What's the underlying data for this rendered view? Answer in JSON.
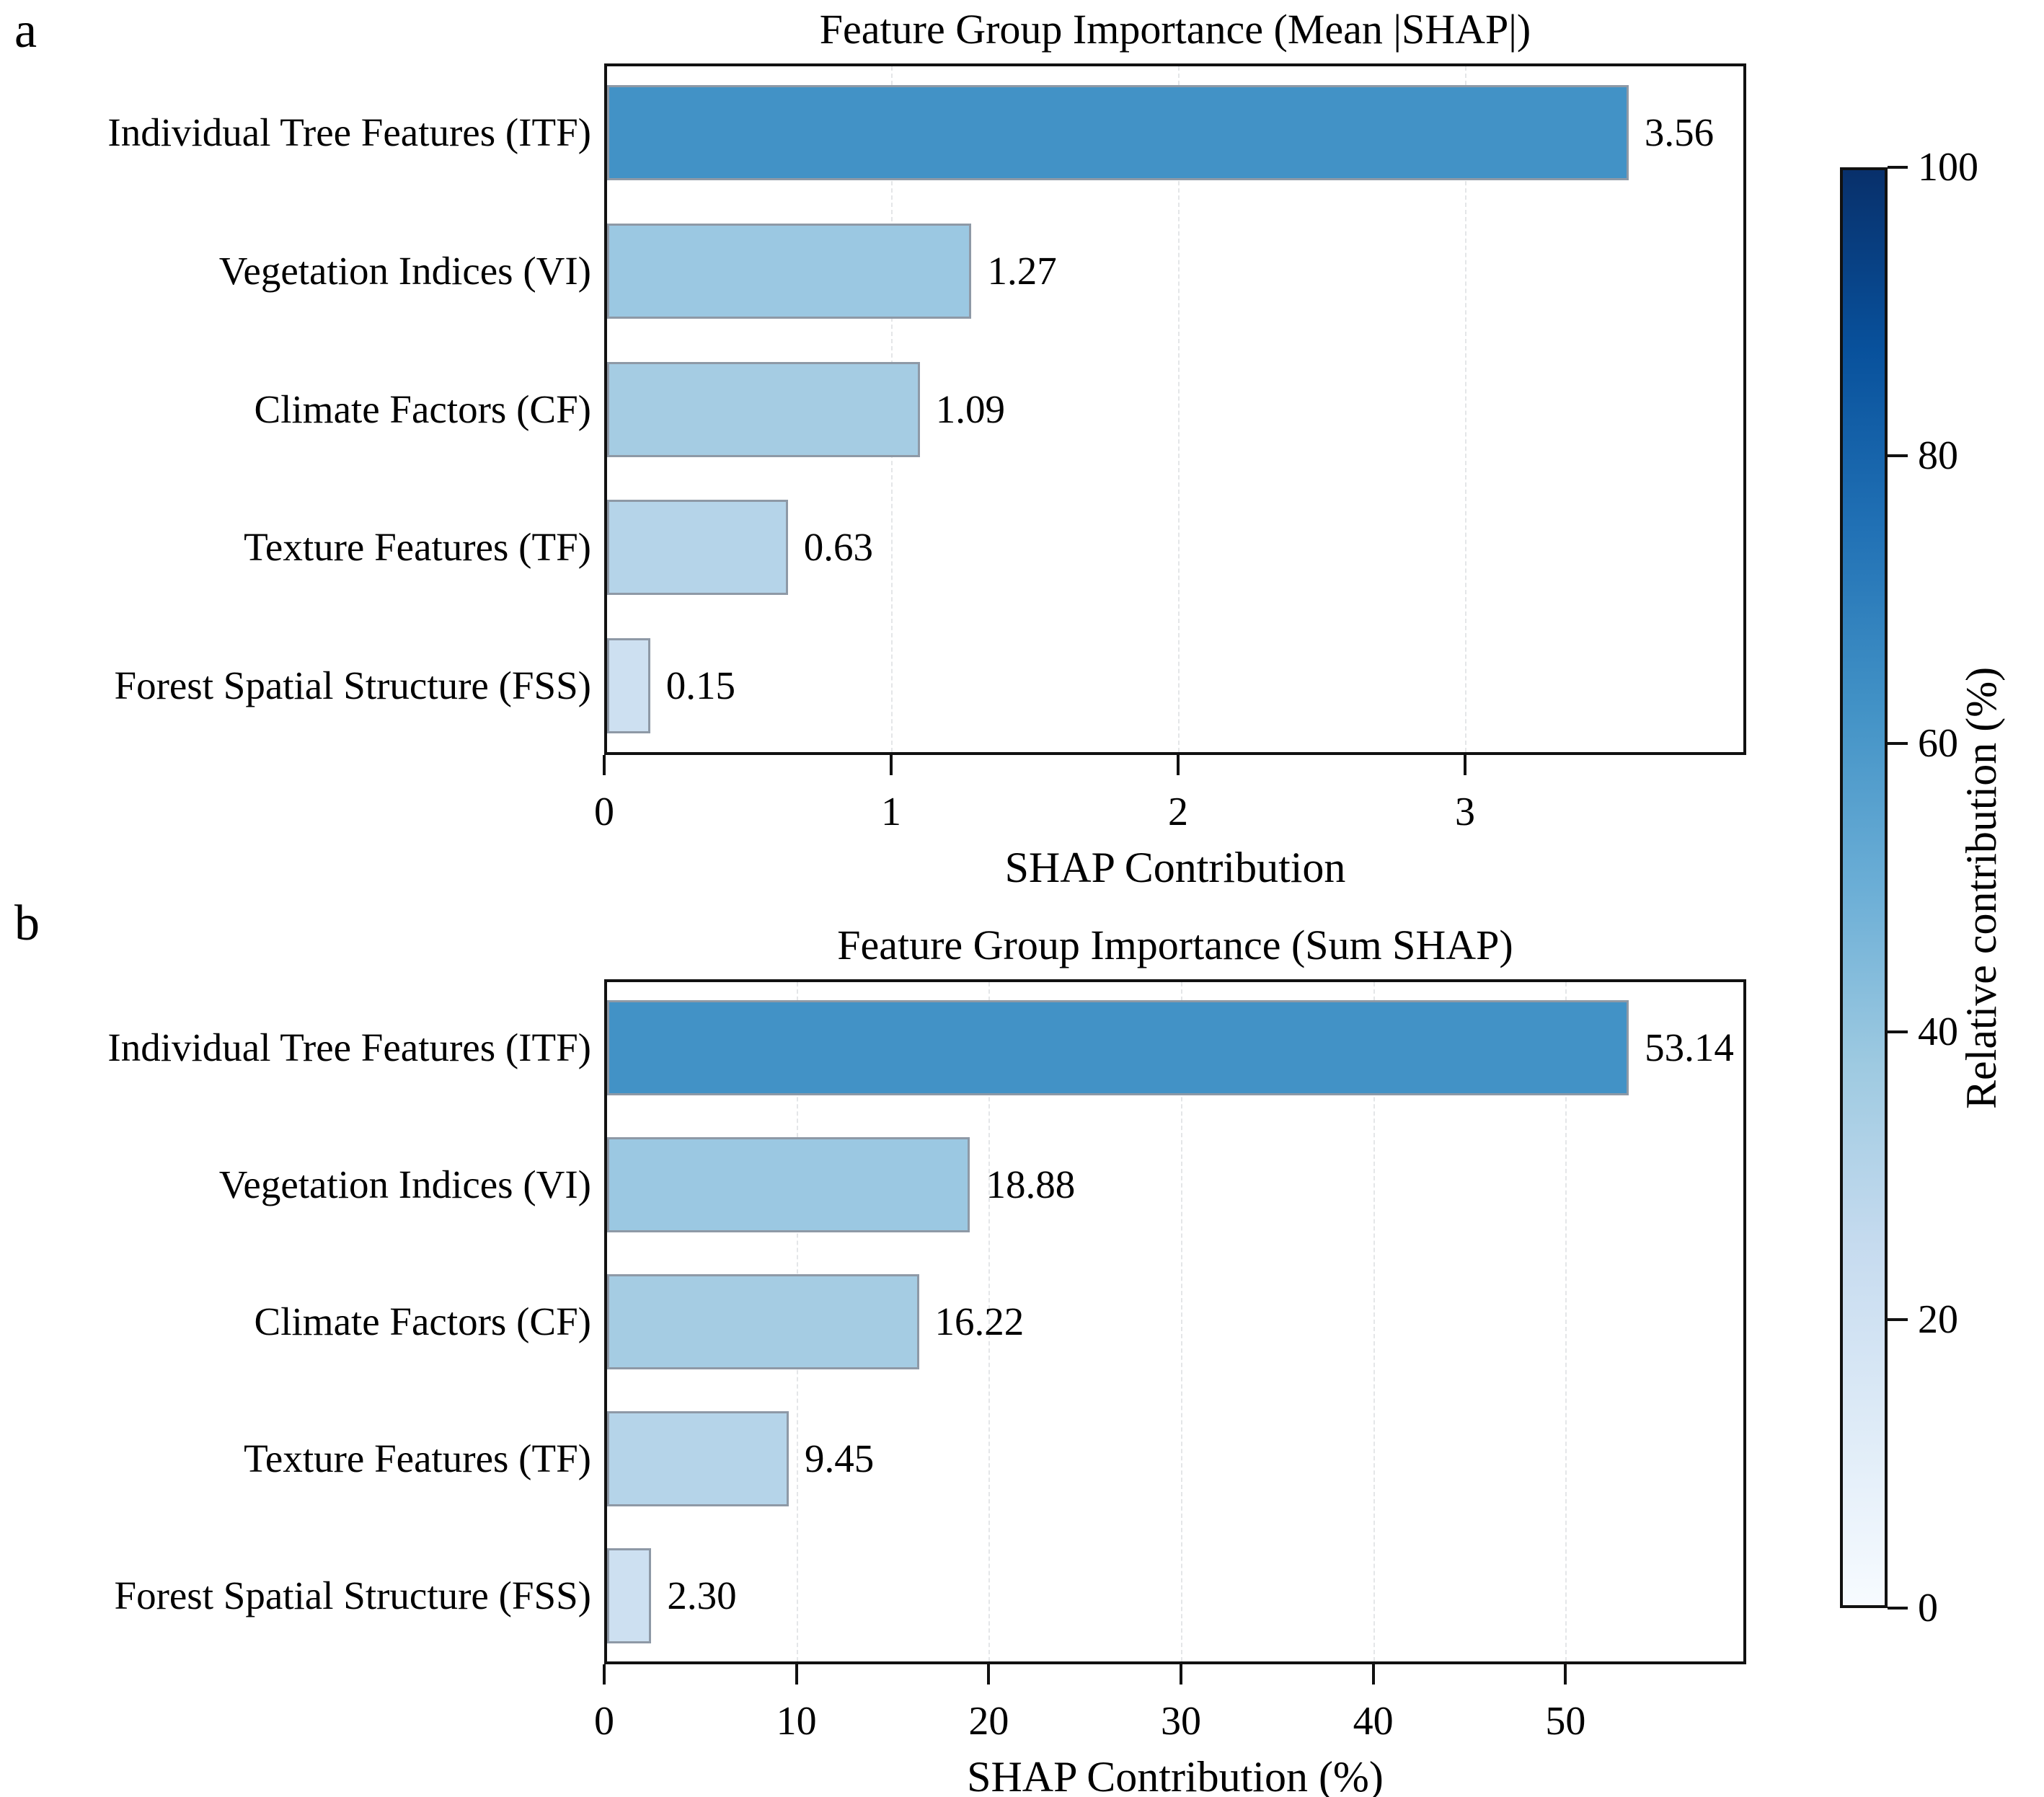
{
  "figure": {
    "background": "#ffffff"
  },
  "colorbar": {
    "label": "Relative contribution (%)",
    "ticks": [
      "100",
      "80",
      "60",
      "40",
      "20",
      "0"
    ],
    "colormap": "Blues",
    "colormap_top": "#08306b",
    "colormap_bottom": "#f7fbff"
  },
  "chart_data": [
    {
      "id": "a",
      "panel_label": "a",
      "type": "bar",
      "orientation": "horizontal",
      "title": "Feature Group Importance (Mean |SHAP|)",
      "xlabel": "SHAP Contribution",
      "categories": [
        "Individual Tree Features (ITF)",
        "Vegetation Indices (VI)",
        "Climate Factors (CF)",
        "Texture Features (TF)",
        "Forest Spatial Structure (FSS)"
      ],
      "values": [
        3.56,
        1.27,
        1.09,
        0.63,
        0.15
      ],
      "value_labels": [
        "3.56",
        "1.27",
        "1.09",
        "0.63",
        "0.15"
      ],
      "bar_colors": [
        "#4292c6",
        "#9bc8e2",
        "#a5cce3",
        "#b5d4e9",
        "#cde0f1"
      ],
      "bar_edge_color": "#8e99a6",
      "x_ticks": [
        0,
        1,
        2,
        3
      ],
      "xlim": [
        0,
        3.98
      ],
      "grid": "dashed-vertical"
    },
    {
      "id": "b",
      "panel_label": "b",
      "type": "bar",
      "orientation": "horizontal",
      "title": "Feature Group Importance (Sum SHAP)",
      "xlabel": "SHAP Contribution (%)",
      "categories": [
        "Individual Tree Features (ITF)",
        "Vegetation Indices (VI)",
        "Climate Factors (CF)",
        "Texture Features (TF)",
        "Forest Spatial Structure (FSS)"
      ],
      "values": [
        53.14,
        18.88,
        16.22,
        9.45,
        2.3
      ],
      "value_labels": [
        "53.14",
        "18.88",
        "16.22",
        "9.45",
        "2.30"
      ],
      "bar_colors": [
        "#4292c6",
        "#9bc8e2",
        "#a5cce3",
        "#b5d4e9",
        "#cde0f1"
      ],
      "bar_edge_color": "#8e99a6",
      "x_ticks": [
        0,
        10,
        20,
        30,
        40,
        50
      ],
      "xlim": [
        0,
        59.4
      ],
      "grid": "dashed-vertical"
    }
  ]
}
